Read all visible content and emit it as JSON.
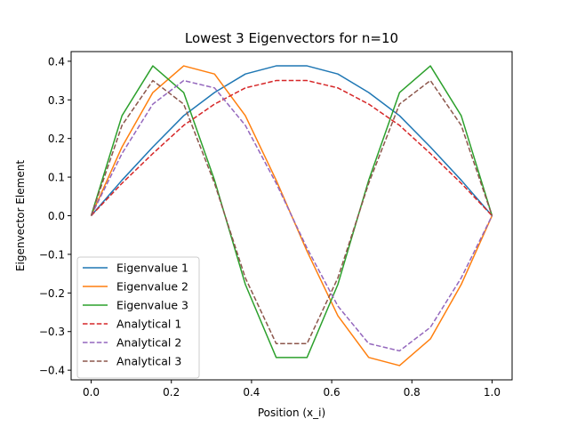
{
  "chart_data": {
    "type": "line",
    "title": "Lowest 3 Eigenvectors for n=10",
    "xlabel": "Position (x_i)",
    "ylabel": "Eigenvector Element",
    "xlim": [
      -0.05,
      1.05
    ],
    "ylim": [
      -0.425,
      0.425
    ],
    "xticks": [
      0.0,
      0.2,
      0.4,
      0.6,
      0.8,
      1.0
    ],
    "xtick_labels": [
      "0.0",
      "0.2",
      "0.4",
      "0.6",
      "0.8",
      "1.0"
    ],
    "yticks": [
      0.4,
      0.3,
      0.2,
      0.1,
      0.0,
      -0.1,
      -0.2,
      -0.3,
      -0.4
    ],
    "ytick_labels": [
      "0.4",
      "0.3",
      "0.2",
      "0.1",
      "0.0",
      "−0.1",
      "−0.2",
      "−0.3",
      "−0.4"
    ],
    "grid": false,
    "legend_position": "lower-left",
    "x": [
      0.0,
      0.0769,
      0.1538,
      0.2308,
      0.3077,
      0.3846,
      0.4615,
      0.5385,
      0.6154,
      0.6923,
      0.7692,
      0.8462,
      0.9231,
      1.0
    ],
    "series": [
      {
        "name": "Eigenvalue 1",
        "color": "#1f77b4",
        "style": "solid",
        "values": [
          0.0,
          0.092,
          0.178,
          0.259,
          0.319,
          0.367,
          0.388,
          0.388,
          0.367,
          0.319,
          0.259,
          0.178,
          0.092,
          0.0
        ]
      },
      {
        "name": "Eigenvalue 2",
        "color": "#ff7f0e",
        "style": "solid",
        "values": [
          0.0,
          0.178,
          0.319,
          0.388,
          0.367,
          0.259,
          0.092,
          -0.092,
          -0.259,
          -0.367,
          -0.388,
          -0.319,
          -0.178,
          0.0
        ]
      },
      {
        "name": "Eigenvalue 3",
        "color": "#2ca02c",
        "style": "solid",
        "values": [
          0.0,
          0.259,
          0.388,
          0.319,
          0.092,
          -0.178,
          -0.367,
          -0.367,
          -0.178,
          0.092,
          0.319,
          0.388,
          0.259,
          0.0
        ]
      },
      {
        "name": "Analytical 1",
        "color": "#d62728",
        "style": "dashed",
        "values": [
          0.0,
          0.084,
          0.161,
          0.234,
          0.289,
          0.331,
          0.35,
          0.35,
          0.331,
          0.289,
          0.234,
          0.161,
          0.084,
          0.0
        ]
      },
      {
        "name": "Analytical 2",
        "color": "#9467bd",
        "style": "dashed",
        "values": [
          0.0,
          0.161,
          0.289,
          0.35,
          0.331,
          0.234,
          0.084,
          -0.084,
          -0.234,
          -0.331,
          -0.35,
          -0.289,
          -0.161,
          0.0
        ]
      },
      {
        "name": "Analytical 3",
        "color": "#8c564b",
        "style": "dashed",
        "values": [
          0.0,
          0.234,
          0.35,
          0.289,
          0.084,
          -0.161,
          -0.331,
          -0.331,
          -0.161,
          0.084,
          0.289,
          0.35,
          0.234,
          0.0
        ]
      }
    ]
  }
}
